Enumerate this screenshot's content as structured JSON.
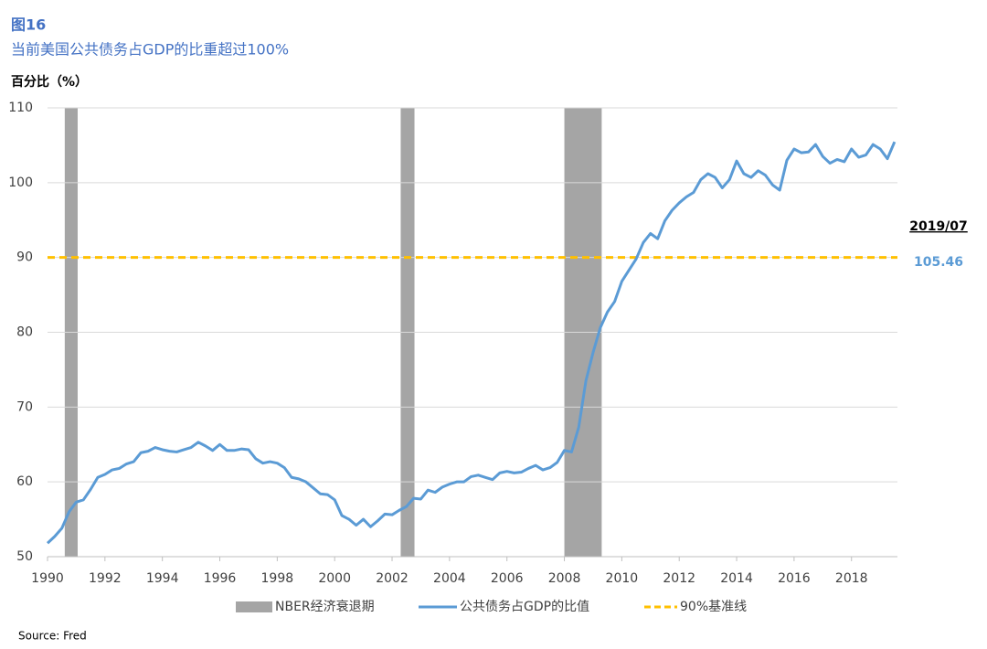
{
  "chart_data": {
    "type": "line",
    "title": "图16",
    "subtitle": "当前美国公共债务占GDP的比重超过100%",
    "y_label": "百分比（%）",
    "source": "Source: Fred",
    "annotation": "2019/07",
    "xlim": [
      1990,
      2019.6
    ],
    "xticks": [
      1990,
      1992,
      1994,
      1996,
      1998,
      2000,
      2002,
      2004,
      2006,
      2008,
      2010,
      2012,
      2014,
      2016,
      2018
    ],
    "ylim": [
      50,
      110
    ],
    "yticks": [
      50,
      60,
      70,
      80,
      90,
      100,
      110
    ],
    "grid": true,
    "legend": "bottom",
    "recessions": {
      "name": "NBER经济衰退期",
      "color": "#a5a5a5",
      "spans": [
        [
          1990.6,
          1991.05
        ],
        [
          2002.3,
          2002.78
        ],
        [
          2008.0,
          2009.3
        ]
      ]
    },
    "reference_line": {
      "name": "90%基准线",
      "color": "#ffc000",
      "value": 90
    },
    "series": [
      {
        "name": "公共债务占GDP的比值",
        "color": "#5b9bd5",
        "x": [
          1990,
          1990.25,
          1990.5,
          1990.75,
          1991,
          1991.25,
          1991.5,
          1991.75,
          1992,
          1992.25,
          1992.5,
          1992.75,
          1993,
          1993.25,
          1993.5,
          1993.75,
          1994,
          1994.25,
          1994.5,
          1994.75,
          1995,
          1995.25,
          1995.5,
          1995.75,
          1996,
          1996.25,
          1996.5,
          1996.75,
          1997,
          1997.25,
          1997.5,
          1997.75,
          1998,
          1998.25,
          1998.5,
          1998.75,
          1999,
          1999.25,
          1999.5,
          1999.75,
          2000,
          2000.25,
          2000.5,
          2000.75,
          2001,
          2001.25,
          2001.5,
          2001.75,
          2002,
          2002.25,
          2002.5,
          2002.75,
          2003,
          2003.25,
          2003.5,
          2003.75,
          2004,
          2004.25,
          2004.5,
          2004.75,
          2005,
          2005.25,
          2005.5,
          2005.75,
          2006,
          2006.25,
          2006.5,
          2006.75,
          2007,
          2007.25,
          2007.5,
          2007.75,
          2008,
          2008.25,
          2008.5,
          2008.75,
          2009,
          2009.25,
          2009.5,
          2009.75,
          2010,
          2010.25,
          2010.5,
          2010.75,
          2011,
          2011.25,
          2011.5,
          2011.75,
          2012,
          2012.25,
          2012.5,
          2012.75,
          2013,
          2013.25,
          2013.5,
          2013.75,
          2014,
          2014.25,
          2014.5,
          2014.75,
          2015,
          2015.25,
          2015.5,
          2015.75,
          2016,
          2016.25,
          2016.5,
          2016.75,
          2017,
          2017.25,
          2017.5,
          2017.75,
          2018,
          2018.25,
          2018.5,
          2018.75,
          2019,
          2019.25,
          2019.5
        ],
        "values": [
          51.8,
          52.7,
          53.8,
          56.0,
          57.3,
          57.6,
          59.0,
          60.6,
          61.0,
          61.6,
          61.8,
          62.4,
          62.7,
          63.9,
          64.1,
          64.6,
          64.3,
          64.1,
          64.0,
          64.3,
          64.6,
          65.3,
          64.8,
          64.2,
          65.0,
          64.2,
          64.2,
          64.4,
          64.3,
          63.1,
          62.5,
          62.7,
          62.5,
          61.9,
          60.6,
          60.4,
          60.0,
          59.2,
          58.4,
          58.3,
          57.6,
          55.5,
          55.0,
          54.2,
          55.0,
          54.0,
          54.8,
          55.7,
          55.6,
          56.2,
          56.7,
          57.8,
          57.7,
          58.9,
          58.6,
          59.3,
          59.7,
          60.0,
          60.0,
          60.7,
          60.9,
          60.6,
          60.3,
          61.2,
          61.4,
          61.2,
          61.3,
          61.8,
          62.2,
          61.6,
          61.9,
          62.6,
          64.2,
          64.0,
          67.3,
          73.5,
          77.3,
          80.6,
          82.7,
          84.1,
          86.8,
          88.3,
          89.8,
          92.0,
          93.2,
          92.5,
          94.9,
          96.3,
          97.3,
          98.1,
          98.7,
          100.4,
          101.2,
          100.7,
          99.3,
          100.4,
          102.9,
          101.2,
          100.7,
          101.6,
          101.0,
          99.7,
          99.0,
          103.0,
          104.5,
          104.0,
          104.1,
          105.1,
          103.5,
          102.6,
          103.1,
          102.8,
          104.5,
          103.4,
          103.7,
          105.1,
          104.5,
          103.2,
          105.46
        ]
      }
    ]
  }
}
